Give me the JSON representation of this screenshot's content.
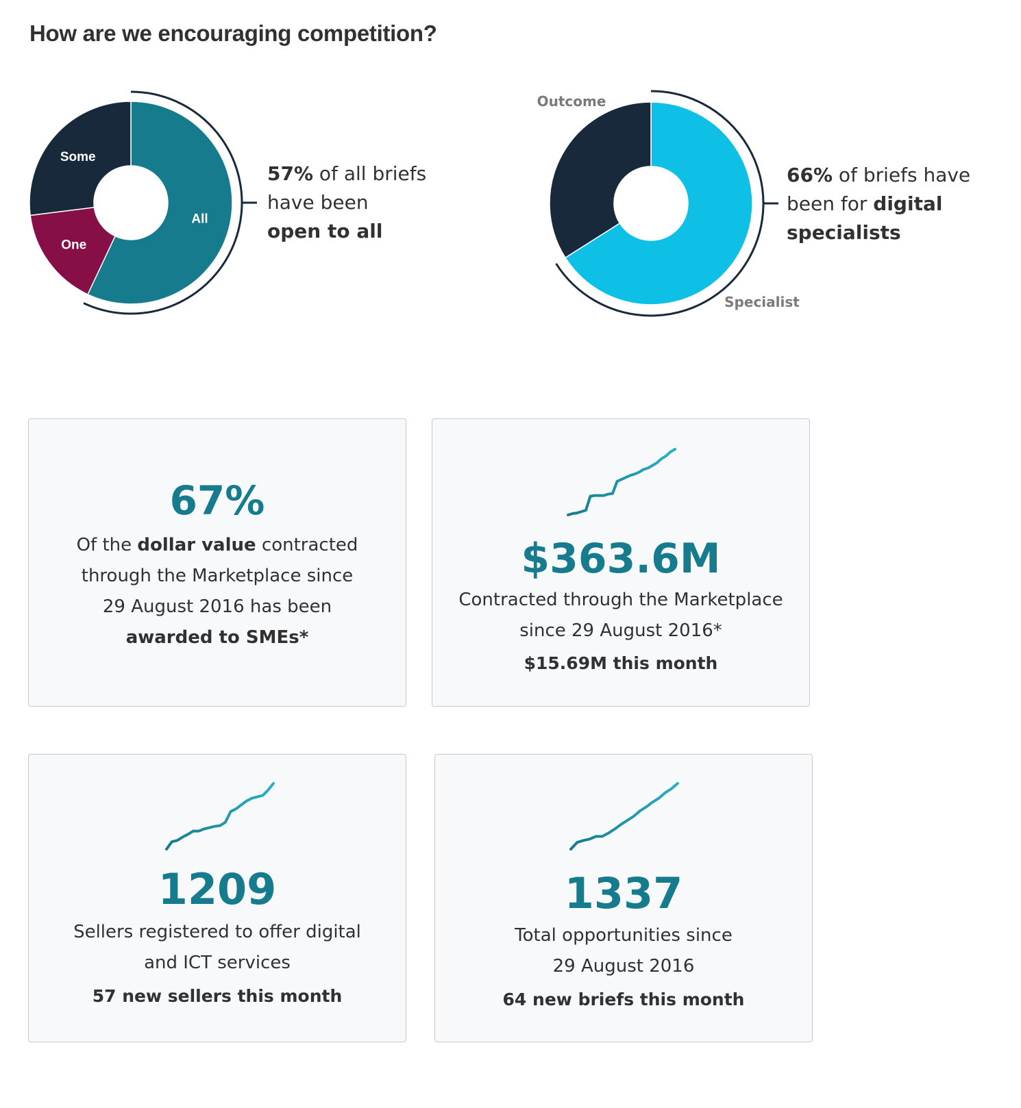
{
  "page": {
    "heading": "How are we encouraging competition?"
  },
  "chart_data": [
    {
      "type": "pie",
      "categories": [
        "All",
        "One",
        "Some"
      ],
      "values": [
        57,
        16,
        27
      ],
      "colors": [
        "#157b8d",
        "#870f47",
        "#17293a"
      ],
      "highlight": "All",
      "description": {
        "pct": "57%",
        "text1": " of all briefs",
        "text2": "have been",
        "bold": "open to all"
      }
    },
    {
      "type": "pie",
      "categories": [
        "Specialist",
        "Outcome"
      ],
      "values": [
        66,
        34
      ],
      "colors": [
        "#0ebfe6",
        "#17293a"
      ],
      "highlight": "Specialist",
      "description": {
        "pct": "66%",
        "text1": " of briefs have",
        "text2": "been for ",
        "bold1": "digital",
        "bold2": "specialists"
      }
    },
    {
      "type": "line",
      "name": "contract-value-sparkline",
      "values": [
        2,
        4,
        5,
        7,
        9,
        30,
        31,
        31,
        31,
        33,
        34,
        52,
        55,
        58,
        61,
        63,
        66,
        70,
        72,
        76,
        80,
        86,
        90,
        96,
        100
      ],
      "color": "#157b8d"
    },
    {
      "type": "line",
      "name": "sellers-sparkline",
      "values": [
        0,
        11,
        13,
        18,
        22,
        27,
        27,
        30,
        32,
        34,
        35,
        40,
        56,
        60,
        66,
        72,
        76,
        78,
        80,
        88,
        98
      ],
      "color": "#157b8d"
    },
    {
      "type": "line",
      "name": "opportunities-sparkline",
      "values": [
        0,
        10,
        13,
        15,
        19,
        19,
        24,
        30,
        37,
        43,
        49,
        57,
        63,
        70,
        76,
        84,
        90,
        98
      ],
      "color": "#157b8d"
    }
  ],
  "cards": {
    "sme": {
      "value": "67%",
      "line1a": "Of the ",
      "line1b": "dollar value",
      "line1c": " contracted",
      "line2": "through the Marketplace since",
      "line3": "29 August 2016 has been",
      "line4": "awarded to SMEs*"
    },
    "contracted": {
      "value": "$363.6M",
      "line1": "Contracted through the Marketplace",
      "line2": "since 29 August 2016*",
      "footer": "$15.69M this month"
    },
    "sellers": {
      "value": "1209",
      "line1": "Sellers registered to offer digital",
      "line2": "and ICT services",
      "footer": "57  new sellers this month"
    },
    "opportunities": {
      "value": "1337",
      "line1": "Total opportunities since",
      "line2": "29 August 2016",
      "footer": "64 new briefs this month"
    }
  }
}
